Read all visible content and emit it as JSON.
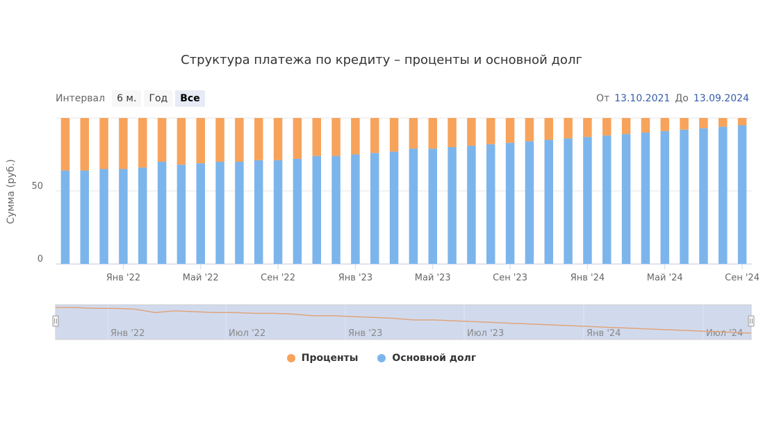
{
  "title": "Структура платежа по кредиту – проценты и основной долг",
  "range_selector": {
    "label": "Интервал",
    "buttons": [
      "6 м.",
      "Год",
      "Все"
    ],
    "selected": "Все"
  },
  "date_range": {
    "from_label": "От",
    "from": "13.10.2021",
    "to_label": "До",
    "to": "13.09.2024"
  },
  "colors": {
    "interest": "#f7a35c",
    "principal": "#7cb5ec",
    "navigator_line": "#e0a47a",
    "navigator_mask": "rgba(102,133,194,0.3)"
  },
  "navigator": {
    "labels": [
      "Янв '22",
      "Июл '22",
      "Янв '23",
      "Июл '23",
      "Янв '24",
      "Июл '24"
    ]
  },
  "chart_data": {
    "type": "bar",
    "stacking": "normal",
    "title": "Структура платежа по кредиту – проценты и основной долг",
    "ylabel": "Сумма (руб.)",
    "ylim": [
      0,
      100
    ],
    "yticks": [
      0,
      50
    ],
    "xtick_labels": [
      "Янв '22",
      "Май '22",
      "Сен '22",
      "Янв '23",
      "Май '23",
      "Сен '23",
      "Янв '24",
      "Май '24",
      "Сен '24"
    ],
    "xtick_index": [
      3,
      7,
      11,
      15,
      19,
      23,
      27,
      31,
      35
    ],
    "categories": [
      "13.10.2021",
      "13.11.2021",
      "13.12.2021",
      "13.01.2022",
      "13.02.2022",
      "13.03.2022",
      "13.04.2022",
      "13.05.2022",
      "13.06.2022",
      "13.07.2022",
      "13.08.2022",
      "13.09.2022",
      "13.10.2022",
      "13.11.2022",
      "13.12.2022",
      "13.01.2023",
      "13.02.2023",
      "13.03.2023",
      "13.04.2023",
      "13.05.2023",
      "13.06.2023",
      "13.07.2023",
      "13.08.2023",
      "13.09.2023",
      "13.10.2023",
      "13.11.2023",
      "13.12.2023",
      "13.01.2024",
      "13.02.2024",
      "13.03.2024",
      "13.04.2024",
      "13.05.2024",
      "13.06.2024",
      "13.07.2024",
      "13.08.2024",
      "13.09.2024"
    ],
    "series": [
      {
        "name": "Проценты",
        "color": "#f7a35c",
        "values": [
          36,
          36,
          35,
          35,
          34,
          30,
          32,
          31,
          30,
          30,
          29,
          29,
          28,
          26,
          26,
          25,
          24,
          23,
          21,
          21,
          20,
          19,
          18,
          17,
          16,
          15,
          14,
          13,
          12,
          11,
          10,
          9,
          8,
          7,
          6,
          5
        ]
      },
      {
        "name": "Основной долг",
        "color": "#7cb5ec",
        "values": [
          64,
          64,
          65,
          65,
          66,
          70,
          68,
          69,
          70,
          70,
          71,
          71,
          72,
          74,
          74,
          75,
          76,
          77,
          79,
          79,
          80,
          81,
          82,
          83,
          84,
          85,
          86,
          87,
          88,
          89,
          90,
          91,
          92,
          93,
          94,
          95
        ]
      }
    ],
    "legend_position": "bottom"
  }
}
